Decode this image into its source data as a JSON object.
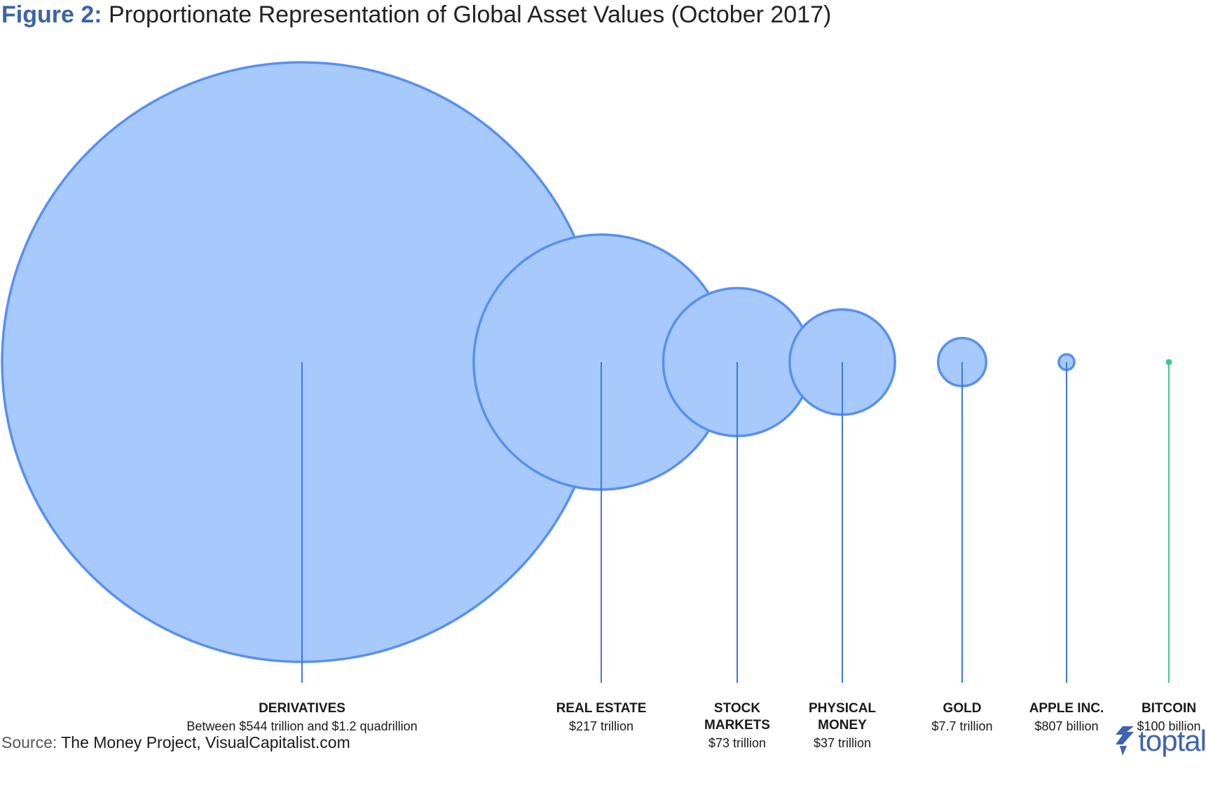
{
  "title": {
    "label": "Figure 2:",
    "text": "Proportionate Representation of Global Asset Values (October 2017)"
  },
  "source": {
    "label": "Source:",
    "text": "The Money Project, VisualCapitalist.com"
  },
  "logo": {
    "text": "toptal",
    "icon": "toptal-logo-icon"
  },
  "colors": {
    "circle_fill": "#a8c9fc",
    "circle_stroke": "#5790f0",
    "leader": "#3d78e6",
    "bitcoin": "#3ec98a",
    "title_accent": "#3b63a8",
    "logo": "#3e64b0"
  },
  "chart_data": {
    "type": "bubble",
    "title": "Proportionate Representation of Global Asset Values (October 2017)",
    "items": [
      {
        "name": [
          "DERIVATIVES"
        ],
        "value_label": "Between $544 trillion and $1.2 quadrillion",
        "value": 1200,
        "unit": "trillion USD"
      },
      {
        "name": [
          "REAL ESTATE"
        ],
        "value_label": "$217 trillion",
        "value": 217,
        "unit": "trillion USD"
      },
      {
        "name": [
          "STOCK",
          "MARKETS"
        ],
        "value_label": "$73 trillion",
        "value": 73,
        "unit": "trillion USD"
      },
      {
        "name": [
          "PHYSICAL",
          "MONEY"
        ],
        "value_label": "$37 trillion",
        "value": 37,
        "unit": "trillion USD"
      },
      {
        "name": [
          "GOLD"
        ],
        "value_label": "$7.7 trillion",
        "value": 7.7,
        "unit": "trillion USD"
      },
      {
        "name": [
          "APPLE INC."
        ],
        "value_label": "$807 billion",
        "value": 0.807,
        "unit": "trillion USD"
      },
      {
        "name": [
          "BITCOIN"
        ],
        "value_label": "$100 billion",
        "value": 0.1,
        "unit": "trillion USD"
      }
    ]
  }
}
